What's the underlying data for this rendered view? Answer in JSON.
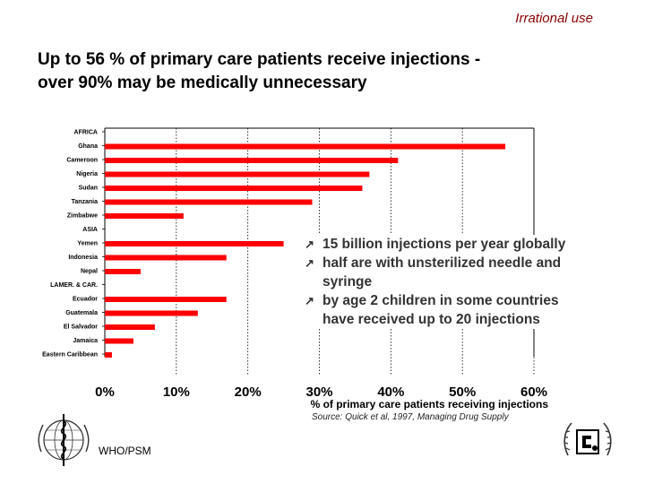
{
  "header": {
    "topic": "Irrational use",
    "title_line1": "Up to 56 % of primary care patients receive injections -",
    "title_line2": "over 90% may be medically unnecessary"
  },
  "chart_data": {
    "type": "bar",
    "orientation": "horizontal",
    "categories": [
      "AFRICA",
      "Ghana",
      "Cameroon",
      "Nigeria",
      "Sudan",
      "Tanzania",
      "Zimbabwe",
      "ASIA",
      "Yemen",
      "Indonesia",
      "Nepal",
      "LAMER. & CAR.",
      "Ecuador",
      "Guatemala",
      "El Salvador",
      "Jamaica",
      "Eastern Caribbean"
    ],
    "values": [
      null,
      56,
      41,
      37,
      36,
      29,
      11,
      null,
      25,
      17,
      5,
      null,
      17,
      13,
      7,
      4,
      1
    ],
    "xlim": [
      0,
      60
    ],
    "xticks": [
      "0%",
      "10%",
      "20%",
      "30%",
      "40%",
      "50%",
      "60%"
    ],
    "xlabel": "% of primary care patients receiving injections",
    "bar_color": "#ff0000"
  },
  "callout": {
    "items": [
      {
        "line1": "15 billion injections per year globally",
        "line2": ""
      },
      {
        "line1": "half are with unsterilized needle and",
        "line2": "syringe"
      },
      {
        "line1": "by age 2 children in some countries",
        "line2": "have received up to 20 injections"
      }
    ]
  },
  "source": "Source: Quick et al, 1997, Managing Drug Supply",
  "footer": {
    "label": "WHO/PSM",
    "left_logo_icon": "who-emblem-icon",
    "right_logo_icon": "un-logo-icon"
  }
}
